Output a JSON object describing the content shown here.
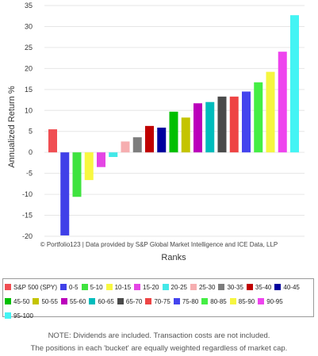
{
  "chart_data": {
    "type": "bar",
    "ylabel": "Annualized Return %",
    "xlabel": "Ranks",
    "ylim": [
      -20,
      35
    ],
    "yticks": [
      35,
      30,
      25,
      20,
      15,
      10,
      5,
      0,
      -5,
      -10,
      -15,
      -20
    ],
    "grid": true,
    "legend_position": "bottom",
    "categories": [
      "S&P 500 (SPY)",
      "0-5",
      "5-10",
      "10-15",
      "15-20",
      "20-25",
      "25-30",
      "30-35",
      "35-40",
      "40-45",
      "45-50",
      "50-55",
      "55-60",
      "60-65",
      "65-70",
      "70-75",
      "75-80",
      "80-85",
      "85-90",
      "90-95",
      "95-100"
    ],
    "values": [
      5.5,
      -19.8,
      -10.6,
      -6.6,
      -3.5,
      -1.1,
      2.6,
      3.6,
      6.3,
      5.9,
      9.7,
      8.3,
      11.7,
      12.0,
      13.3,
      13.3,
      14.5,
      16.7,
      19.2,
      24.0,
      32.7
    ],
    "colors": [
      "#f04e53",
      "#4040e8",
      "#3fe33f",
      "#f8f840",
      "#e445e4",
      "#43e8e8",
      "#f6aeb0",
      "#7d7d7d",
      "#c00000",
      "#00009e",
      "#00bf00",
      "#c4c400",
      "#bb00bb",
      "#00bcbc",
      "#4a4a4a",
      "#ee4444",
      "#4444ee",
      "#44ee44",
      "#f6f640",
      "#ee44ee",
      "#44f4f4"
    ]
  },
  "credit": "© Portfolio123 | Data provided by S&P Global Market Intelligence and ICE Data, LLP",
  "notes": [
    "NOTE: Dividends are included. Transaction costs are not included.",
    "The positions in each 'bucket' are equally weighted regardless of market cap."
  ]
}
